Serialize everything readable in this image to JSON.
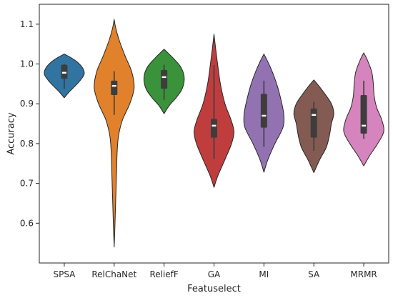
{
  "chart_data": {
    "type": "violin",
    "title": "",
    "xlabel": "Featuselect",
    "ylabel": "Accuracy",
    "ylim": [
      0.5,
      1.15
    ],
    "yticks": [
      0.6,
      0.7,
      0.8,
      0.9,
      1.0,
      1.1
    ],
    "ytick_labels": [
      "0.6",
      "0.7",
      "0.8",
      "0.9",
      "1.0",
      "1.1"
    ],
    "categories": [
      "SPSA",
      "RelChaNet",
      "ReliefF",
      "GA",
      "MI",
      "SA",
      "MRMR"
    ],
    "colors": [
      "#3274a1",
      "#e1812c",
      "#3a923a",
      "#c03d3e",
      "#9372b2",
      "#845b53",
      "#d684bd"
    ],
    "grid": false,
    "legend": "none",
    "series": [
      {
        "category": "SPSA",
        "median": 0.978,
        "q1": 0.963,
        "q3": 0.998,
        "whisker_low": 0.937,
        "whisker_high": 1.0,
        "density": [
          [
            0.915,
            0.0
          ],
          [
            0.93,
            0.25
          ],
          [
            0.945,
            0.55
          ],
          [
            0.96,
            0.82
          ],
          [
            0.975,
            1.0
          ],
          [
            0.99,
            0.92
          ],
          [
            1.005,
            0.65
          ],
          [
            1.017,
            0.3
          ],
          [
            1.025,
            0.0
          ]
        ]
      },
      {
        "category": "RelChaNet",
        "median": 0.945,
        "q1": 0.922,
        "q3": 0.958,
        "whisker_low": 0.872,
        "whisker_high": 0.982,
        "density": [
          [
            0.54,
            0.0
          ],
          [
            0.58,
            0.03
          ],
          [
            0.63,
            0.06
          ],
          [
            0.68,
            0.09
          ],
          [
            0.73,
            0.12
          ],
          [
            0.78,
            0.15
          ],
          [
            0.82,
            0.22
          ],
          [
            0.86,
            0.42
          ],
          [
            0.9,
            0.78
          ],
          [
            0.94,
            1.0
          ],
          [
            0.98,
            0.88
          ],
          [
            1.02,
            0.55
          ],
          [
            1.06,
            0.25
          ],
          [
            1.09,
            0.08
          ],
          [
            1.112,
            0.0
          ]
        ]
      },
      {
        "category": "ReliefF",
        "median": 0.967,
        "q1": 0.938,
        "q3": 0.985,
        "whisker_low": 0.91,
        "whisker_high": 0.998,
        "density": [
          [
            0.875,
            0.0
          ],
          [
            0.895,
            0.25
          ],
          [
            0.915,
            0.6
          ],
          [
            0.935,
            0.88
          ],
          [
            0.955,
            1.0
          ],
          [
            0.975,
            0.98
          ],
          [
            0.995,
            0.8
          ],
          [
            1.015,
            0.45
          ],
          [
            1.03,
            0.15
          ],
          [
            1.037,
            0.0
          ]
        ]
      },
      {
        "category": "GA",
        "median": 0.845,
        "q1": 0.815,
        "q3": 0.862,
        "whisker_low": 0.762,
        "whisker_high": 0.997,
        "density": [
          [
            0.69,
            0.0
          ],
          [
            0.72,
            0.2
          ],
          [
            0.76,
            0.55
          ],
          [
            0.8,
            0.88
          ],
          [
            0.83,
            1.0
          ],
          [
            0.86,
            0.85
          ],
          [
            0.9,
            0.55
          ],
          [
            0.95,
            0.32
          ],
          [
            1.0,
            0.18
          ],
          [
            1.04,
            0.08
          ],
          [
            1.075,
            0.0
          ]
        ]
      },
      {
        "category": "MI",
        "median": 0.87,
        "q1": 0.84,
        "q3": 0.925,
        "whisker_low": 0.792,
        "whisker_high": 0.958,
        "density": [
          [
            0.728,
            0.0
          ],
          [
            0.76,
            0.2
          ],
          [
            0.8,
            0.55
          ],
          [
            0.84,
            0.95
          ],
          [
            0.87,
            1.0
          ],
          [
            0.9,
            0.9
          ],
          [
            0.94,
            0.7
          ],
          [
            0.97,
            0.5
          ],
          [
            1.0,
            0.25
          ],
          [
            1.025,
            0.0
          ]
        ]
      },
      {
        "category": "SA",
        "median": 0.872,
        "q1": 0.815,
        "q3": 0.888,
        "whisker_low": 0.782,
        "whisker_high": 0.905,
        "density": [
          [
            0.727,
            0.0
          ],
          [
            0.76,
            0.3
          ],
          [
            0.79,
            0.62
          ],
          [
            0.82,
            0.78
          ],
          [
            0.85,
            0.88
          ],
          [
            0.875,
            1.0
          ],
          [
            0.9,
            0.88
          ],
          [
            0.925,
            0.55
          ],
          [
            0.945,
            0.25
          ],
          [
            0.96,
            0.0
          ]
        ]
      },
      {
        "category": "MRMR",
        "median": 0.845,
        "q1": 0.825,
        "q3": 0.922,
        "whisker_low": 0.812,
        "whisker_high": 0.958,
        "density": [
          [
            0.744,
            0.0
          ],
          [
            0.77,
            0.3
          ],
          [
            0.8,
            0.7
          ],
          [
            0.83,
            1.0
          ],
          [
            0.86,
            0.9
          ],
          [
            0.89,
            0.65
          ],
          [
            0.92,
            0.52
          ],
          [
            0.95,
            0.48
          ],
          [
            0.98,
            0.4
          ],
          [
            1.01,
            0.18
          ],
          [
            1.028,
            0.0
          ]
        ]
      }
    ]
  }
}
